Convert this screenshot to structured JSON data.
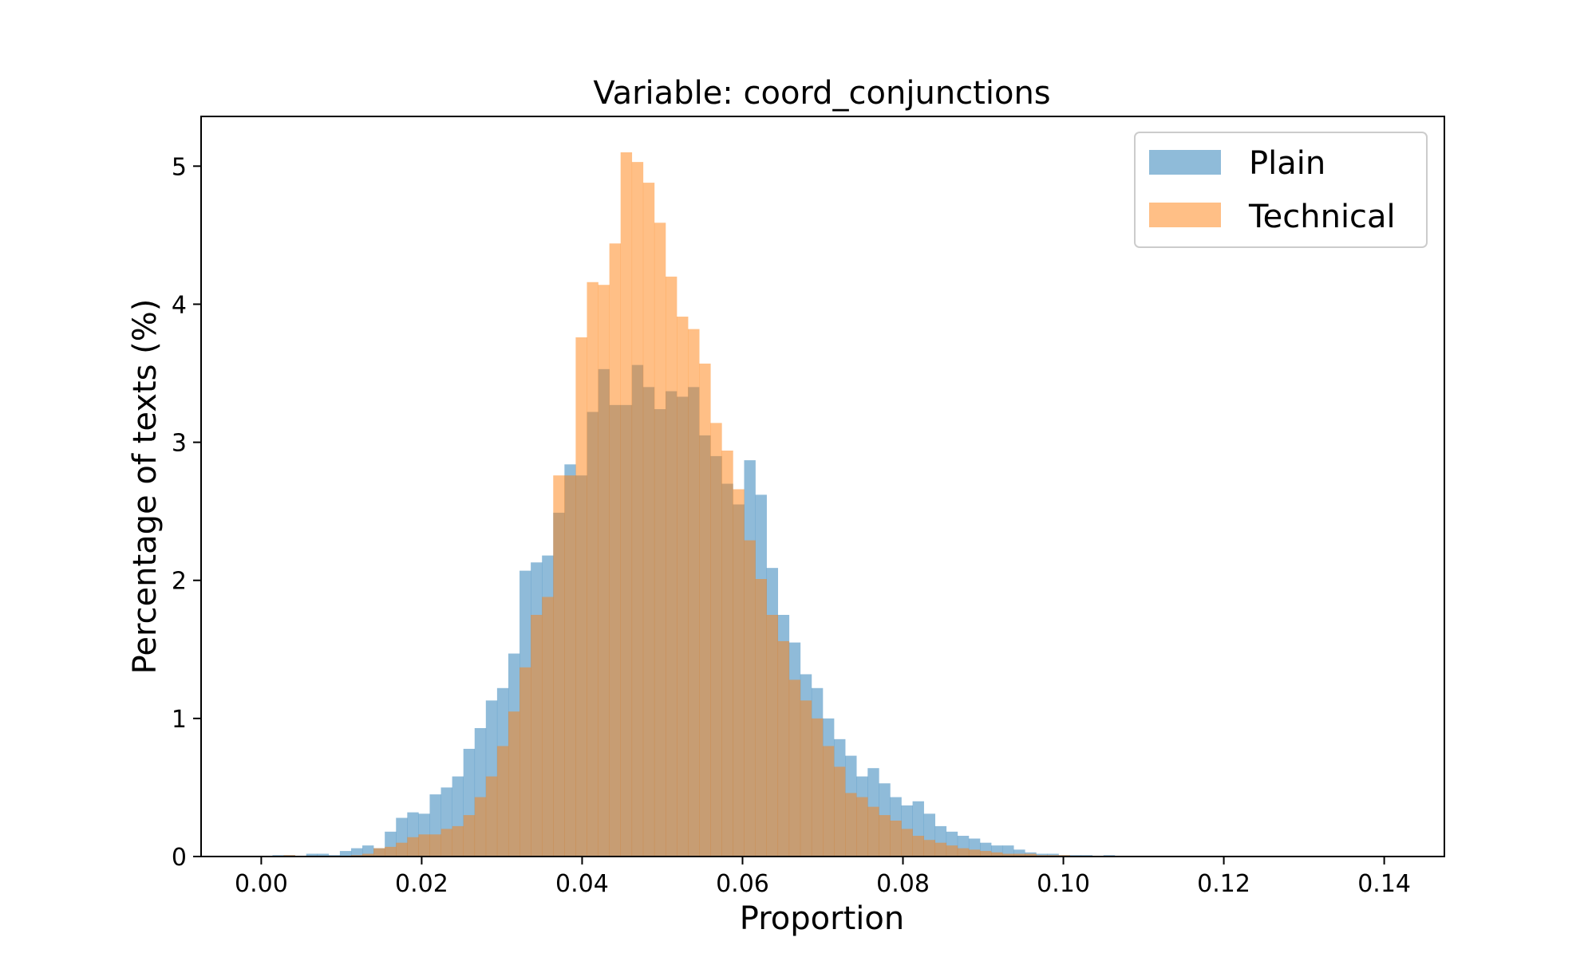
{
  "chart_data": {
    "type": "bar",
    "subtype": "overlapping-histogram",
    "title": "Variable: coord_conjunctions",
    "xlabel": "Proportion",
    "ylabel": "Percentage of texts (%)",
    "xlim": [
      -0.0075,
      0.1475
    ],
    "ylim": [
      0,
      5.36
    ],
    "xticks": [
      0.0,
      0.02,
      0.04,
      0.06,
      0.08,
      0.1,
      0.12,
      0.14
    ],
    "xtick_labels": [
      "0.00",
      "0.02",
      "0.04",
      "0.06",
      "0.08",
      "0.10",
      "0.12",
      "0.14"
    ],
    "yticks": [
      0,
      1,
      2,
      3,
      4,
      5
    ],
    "ytick_labels": [
      "0",
      "1",
      "2",
      "3",
      "4",
      "5"
    ],
    "grid": false,
    "legend_position": "top-right",
    "bin_width": 0.0014,
    "series": [
      {
        "name": "Plain",
        "color": "#1f77b4",
        "opacity": 0.5,
        "bin_start": 0.0,
        "values": [
          0.0,
          0.01,
          0.01,
          0.0,
          0.02,
          0.02,
          0.01,
          0.04,
          0.06,
          0.08,
          0.06,
          0.18,
          0.28,
          0.32,
          0.31,
          0.45,
          0.5,
          0.58,
          0.78,
          0.93,
          1.13,
          1.22,
          1.47,
          2.07,
          2.13,
          2.18,
          2.49,
          2.84,
          2.76,
          3.22,
          3.53,
          3.27,
          3.27,
          3.56,
          3.4,
          3.24,
          3.37,
          3.33,
          3.4,
          3.05,
          2.9,
          2.7,
          2.55,
          2.87,
          2.62,
          2.09,
          1.75,
          1.55,
          1.32,
          1.22,
          1.0,
          0.85,
          0.73,
          0.58,
          0.64,
          0.53,
          0.43,
          0.37,
          0.4,
          0.31,
          0.22,
          0.18,
          0.15,
          0.13,
          0.1,
          0.08,
          0.08,
          0.05,
          0.03,
          0.02,
          0.02,
          0.01,
          0.01,
          0.01,
          0.0,
          0.01,
          0.0,
          0.0
        ]
      },
      {
        "name": "Technical",
        "color": "#ff7f0e",
        "opacity": 0.5,
        "bin_start": 0.0,
        "values": [
          0.0,
          0.0,
          0.01,
          0.0,
          0.0,
          0.0,
          0.0,
          0.0,
          0.01,
          0.02,
          0.06,
          0.07,
          0.1,
          0.14,
          0.16,
          0.16,
          0.2,
          0.22,
          0.3,
          0.43,
          0.58,
          0.8,
          1.05,
          1.37,
          1.75,
          1.88,
          2.76,
          2.76,
          3.76,
          4.16,
          4.14,
          4.44,
          5.1,
          5.03,
          4.88,
          4.59,
          4.2,
          3.91,
          3.82,
          3.57,
          3.14,
          2.94,
          2.66,
          2.29,
          2.01,
          1.75,
          1.56,
          1.28,
          1.13,
          1.0,
          0.8,
          0.65,
          0.46,
          0.43,
          0.36,
          0.3,
          0.26,
          0.2,
          0.15,
          0.12,
          0.1,
          0.08,
          0.06,
          0.05,
          0.04,
          0.03,
          0.02,
          0.02,
          0.02,
          0.01,
          0.01,
          0.01,
          0.0,
          0.0,
          0.0,
          0.0,
          0.0,
          0.0
        ]
      }
    ]
  }
}
